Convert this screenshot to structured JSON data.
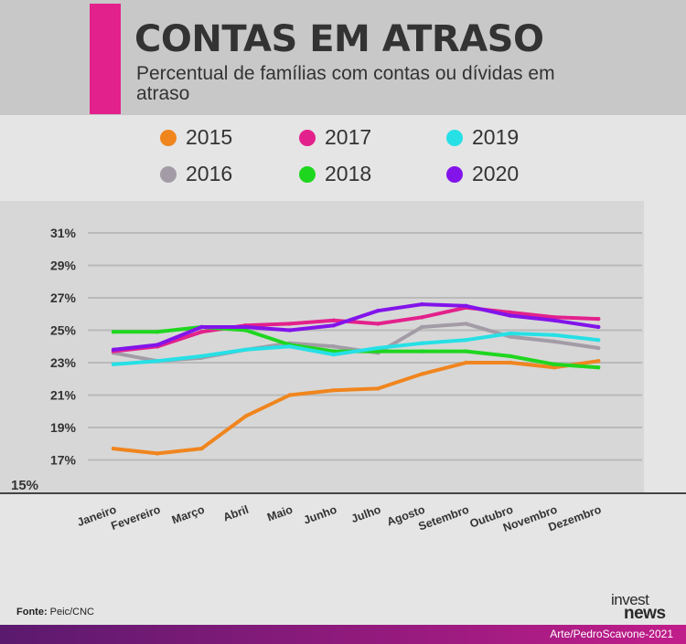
{
  "header": {
    "title": "CONTAS EM ATRASO",
    "subtitle": "Percentual de famílias com contas ou dívidas em atraso"
  },
  "colors": {
    "accent": "#e3218c",
    "header_bg": "#c8c8c8",
    "chart_bg": "#d7d7d7"
  },
  "chart_data": {
    "type": "line",
    "categories": [
      "Janeiro",
      "Fevereiro",
      "Março",
      "Abril",
      "Maio",
      "Junho",
      "Julho",
      "Agosto",
      "Setembro",
      "Outubro",
      "Novembro",
      "Dezembro"
    ],
    "y_ticks": [
      "31%",
      "29%",
      "27%",
      "25%",
      "23%",
      "21%",
      "19%",
      "17%",
      "15%"
    ],
    "ylim": [
      15,
      31
    ],
    "grid": true,
    "legend_position": "top",
    "series": [
      {
        "name": "2015",
        "color": "#f0851e",
        "values": [
          17.7,
          17.4,
          17.7,
          19.7,
          21.0,
          21.3,
          21.4,
          22.3,
          23.0,
          23.0,
          22.7,
          23.1
        ]
      },
      {
        "name": "2016",
        "color": "#a39ca7",
        "values": [
          23.6,
          23.1,
          23.3,
          23.8,
          24.2,
          24.0,
          23.6,
          25.2,
          25.4,
          24.6,
          24.3,
          23.9
        ]
      },
      {
        "name": "2017",
        "color": "#e3218c",
        "values": [
          23.7,
          24.0,
          24.9,
          25.3,
          25.4,
          25.6,
          25.4,
          25.8,
          26.4,
          26.1,
          25.8,
          25.7
        ]
      },
      {
        "name": "2018",
        "color": "#1fd61f",
        "values": [
          24.9,
          24.9,
          25.2,
          25.0,
          24.1,
          23.7,
          23.7,
          23.7,
          23.7,
          23.4,
          22.9,
          22.7
        ]
      },
      {
        "name": "2019",
        "color": "#26e0e6",
        "values": [
          22.9,
          23.1,
          23.4,
          23.8,
          24.0,
          23.5,
          23.9,
          24.2,
          24.4,
          24.8,
          24.7,
          24.4
        ]
      },
      {
        "name": "2020",
        "color": "#8214ea",
        "values": [
          23.8,
          24.1,
          25.2,
          25.2,
          25.0,
          25.3,
          26.2,
          26.6,
          26.5,
          25.9,
          25.6,
          25.2
        ]
      }
    ]
  },
  "legend": [
    {
      "label": "2015",
      "color": "#f0851e"
    },
    {
      "label": "2017",
      "color": "#e3218c"
    },
    {
      "label": "2019",
      "color": "#26e0e6"
    },
    {
      "label": "2016",
      "color": "#a39ca7"
    },
    {
      "label": "2018",
      "color": "#1fd61f"
    },
    {
      "label": "2020",
      "color": "#8214ea"
    }
  ],
  "footer": {
    "source_label": "Fonte:",
    "source_value": "Peic/CNC",
    "logo_line1": "invest",
    "logo_line2": "news",
    "credit": "Arte/PedroScavone-2021"
  }
}
